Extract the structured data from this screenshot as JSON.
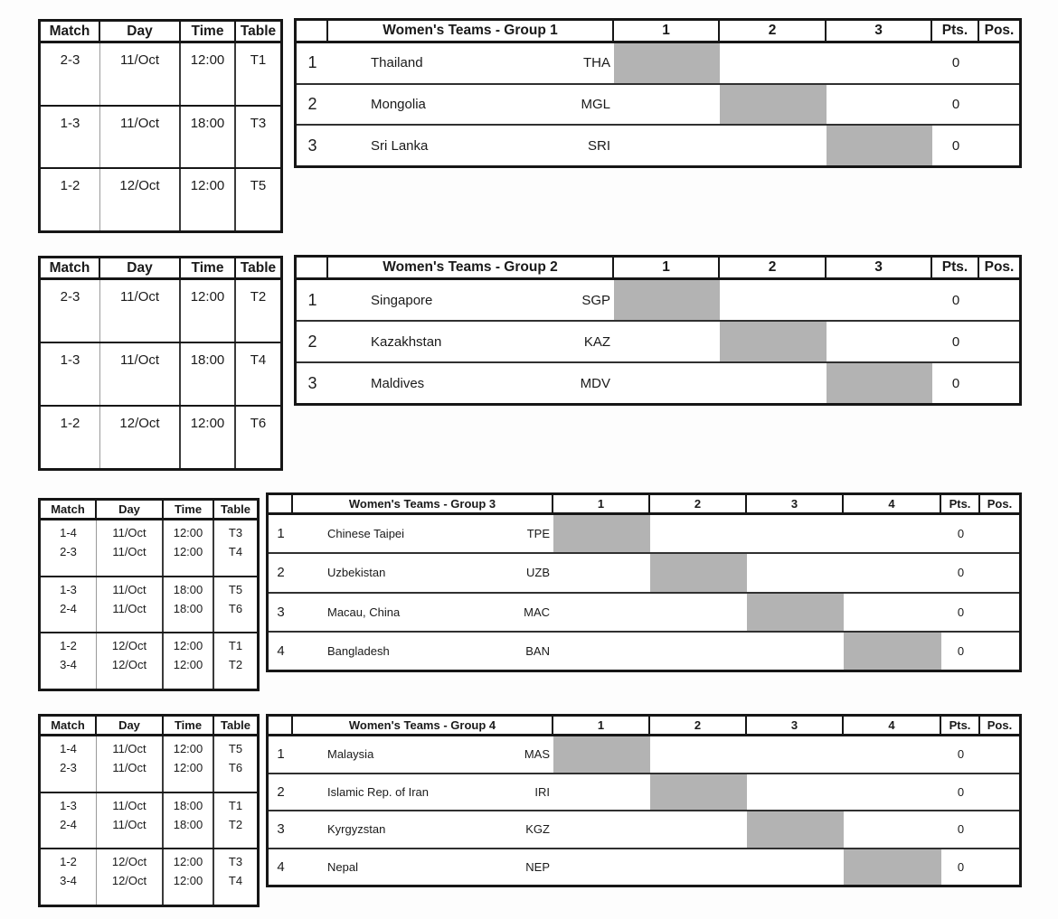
{
  "colors": {
    "diagonal_fill": "#b3b3b3",
    "border": "#161616"
  },
  "groups": [
    {
      "title": "Women's Teams - Group 1",
      "schedule_headers": [
        "Match",
        "Day",
        "Time",
        "Table"
      ],
      "schedule_blocks": [
        [
          [
            "2-3",
            "11/Oct",
            "12:00",
            "T1"
          ]
        ],
        [
          [
            "1-3",
            "11/Oct",
            "18:00",
            "T3"
          ]
        ],
        [
          [
            "1-2",
            "12/Oct",
            "12:00",
            "T5"
          ]
        ]
      ],
      "match_cols": [
        "1",
        "2",
        "3"
      ],
      "pts_header": "Pts.",
      "pos_header": "Pos.",
      "teams": [
        {
          "no": "1",
          "name": "Thailand",
          "abbr": "THA",
          "pts": "0",
          "pos": ""
        },
        {
          "no": "2",
          "name": "Mongolia",
          "abbr": "MGL",
          "pts": "0",
          "pos": ""
        },
        {
          "no": "3",
          "name": "Sri Lanka",
          "abbr": "SRI",
          "pts": "0",
          "pos": ""
        }
      ]
    },
    {
      "title": "Women's Teams - Group 2",
      "schedule_headers": [
        "Match",
        "Day",
        "Time",
        "Table"
      ],
      "schedule_blocks": [
        [
          [
            "2-3",
            "11/Oct",
            "12:00",
            "T2"
          ]
        ],
        [
          [
            "1-3",
            "11/Oct",
            "18:00",
            "T4"
          ]
        ],
        [
          [
            "1-2",
            "12/Oct",
            "12:00",
            "T6"
          ]
        ]
      ],
      "match_cols": [
        "1",
        "2",
        "3"
      ],
      "pts_header": "Pts.",
      "pos_header": "Pos.",
      "teams": [
        {
          "no": "1",
          "name": "Singapore",
          "abbr": "SGP",
          "pts": "0",
          "pos": ""
        },
        {
          "no": "2",
          "name": "Kazakhstan",
          "abbr": "KAZ",
          "pts": "0",
          "pos": ""
        },
        {
          "no": "3",
          "name": "Maldives",
          "abbr": "MDV",
          "pts": "0",
          "pos": ""
        }
      ]
    },
    {
      "title": "Women's Teams - Group 3",
      "schedule_headers": [
        "Match",
        "Day",
        "Time",
        "Table"
      ],
      "schedule_blocks": [
        [
          [
            "1-4",
            "11/Oct",
            "12:00",
            "T3"
          ],
          [
            "2-3",
            "11/Oct",
            "12:00",
            "T4"
          ]
        ],
        [
          [
            "1-3",
            "11/Oct",
            "18:00",
            "T5"
          ],
          [
            "2-4",
            "11/Oct",
            "18:00",
            "T6"
          ]
        ],
        [
          [
            "1-2",
            "12/Oct",
            "12:00",
            "T1"
          ],
          [
            "3-4",
            "12/Oct",
            "12:00",
            "T2"
          ]
        ]
      ],
      "match_cols": [
        "1",
        "2",
        "3",
        "4"
      ],
      "pts_header": "Pts.",
      "pos_header": "Pos.",
      "teams": [
        {
          "no": "1",
          "name": "Chinese Taipei",
          "abbr": "TPE",
          "pts": "0",
          "pos": ""
        },
        {
          "no": "2",
          "name": "Uzbekistan",
          "abbr": "UZB",
          "pts": "0",
          "pos": ""
        },
        {
          "no": "3",
          "name": "Macau, China",
          "abbr": "MAC",
          "pts": "0",
          "pos": ""
        },
        {
          "no": "4",
          "name": "Bangladesh",
          "abbr": "BAN",
          "pts": "0",
          "pos": ""
        }
      ]
    },
    {
      "title": "Women's Teams - Group 4",
      "schedule_headers": [
        "Match",
        "Day",
        "Time",
        "Table"
      ],
      "schedule_blocks": [
        [
          [
            "1-4",
            "11/Oct",
            "12:00",
            "T5"
          ],
          [
            "2-3",
            "11/Oct",
            "12:00",
            "T6"
          ]
        ],
        [
          [
            "1-3",
            "11/Oct",
            "18:00",
            "T1"
          ],
          [
            "2-4",
            "11/Oct",
            "18:00",
            "T2"
          ]
        ],
        [
          [
            "1-2",
            "12/Oct",
            "12:00",
            "T3"
          ],
          [
            "3-4",
            "12/Oct",
            "12:00",
            "T4"
          ]
        ]
      ],
      "match_cols": [
        "1",
        "2",
        "3",
        "4"
      ],
      "pts_header": "Pts.",
      "pos_header": "Pos.",
      "teams": [
        {
          "no": "1",
          "name": "Malaysia",
          "abbr": "MAS",
          "pts": "0",
          "pos": ""
        },
        {
          "no": "2",
          "name": "Islamic Rep. of Iran",
          "abbr": "IRI",
          "pts": "0",
          "pos": ""
        },
        {
          "no": "3",
          "name": "Kyrgyzstan",
          "abbr": "KGZ",
          "pts": "0",
          "pos": ""
        },
        {
          "no": "4",
          "name": "Nepal",
          "abbr": "NEP",
          "pts": "0",
          "pos": ""
        }
      ]
    }
  ]
}
